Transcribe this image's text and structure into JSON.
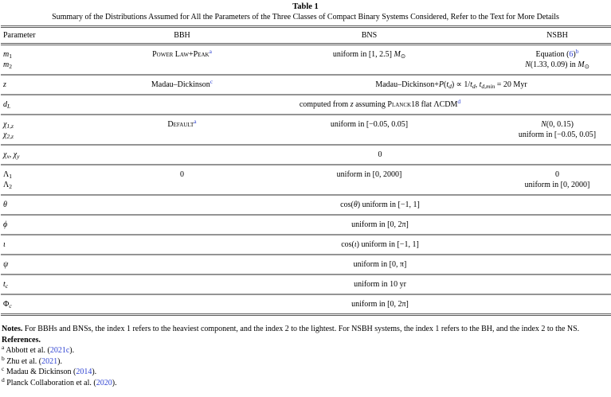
{
  "colors": {
    "link": "#2f43d2"
  },
  "caption": {
    "title": "Table 1",
    "subtitle": "Summary of the Distributions Assumed for All the Parameters of the Three Classes of Compact Binary Systems Considered, Refer to the Text for More Details"
  },
  "header": {
    "parameter": "Parameter",
    "bbh": "BBH",
    "bns": "BNS",
    "nsbh": "NSBH"
  },
  "rows": {
    "m": {
      "p1v": "m",
      "p1s": "1",
      "p2v": "m",
      "p2s": "2",
      "bbh_sc": "Power Law+Peak",
      "bbh_sup": "a",
      "bns_t1": "uniform in [1, 2.5] ",
      "bns_M": "M",
      "bns_sun": "⊙",
      "nsbh1_t1": "Equation (",
      "nsbh1_link": "6",
      "nsbh1_t2": ")",
      "nsbh1_sup": "b",
      "nsbh2_N": "N",
      "nsbh2_t1": "(1.33, 0.09) in ",
      "nsbh2_M": "M",
      "nsbh2_sun": "⊙"
    },
    "z": {
      "p": "z",
      "bbh_t1": "Madau–Dickinson",
      "bbh_sup": "c",
      "sp_t1": "Madau–Dickinson+",
      "sp_P": "P",
      "sp_t2": "(",
      "sp_v1": "t",
      "sp_s1": "d",
      "sp_t3": ") ∝ 1/",
      "sp_v2": "t",
      "sp_s2": "d",
      "sp_t4": ", ",
      "sp_v3": "t",
      "sp_s3": "d,min",
      "sp_t5": " = 20 Myr"
    },
    "dl": {
      "pv": "d",
      "ps": "L",
      "sp_t1": "computed from ",
      "sp_z": "z",
      "sp_t2": " assuming ",
      "sp_sc": "Planck18",
      "sp_t3": " flat ΛCDM",
      "sp_sup": "d"
    },
    "chi": {
      "p1v": "χ",
      "p1s": "1,z",
      "p2v": "χ",
      "p2s": "2,z",
      "bbh_sc": "Default",
      "bbh_sup": "a",
      "bns": "uniform in [−0.05, 0.05]",
      "nsbh1_N": "N",
      "nsbh1_t1": "(0, 0.15)",
      "nsbh2": "uniform in [−0.05, 0.05]"
    },
    "chixy": {
      "p1v": "χ",
      "p1s": "x",
      "psep": ", ",
      "p2v": "χ",
      "p2s": "y",
      "span": "0"
    },
    "lambda": {
      "p1v": "Λ",
      "p1s": "1",
      "p2v": "Λ",
      "p2s": "2",
      "bbh": "0",
      "bns": "uniform in [0, 2000]",
      "nsbh1": "0",
      "nsbh2": "uniform in [0, 2000]"
    },
    "theta": {
      "p": "θ",
      "sp_t1": "cos(",
      "sp_v": "θ",
      "sp_t2": ") uniform in [−1, 1]"
    },
    "phi": {
      "p": "ϕ",
      "span": "uniform in [0, 2π]"
    },
    "iota": {
      "p": "ι",
      "sp_t1": "cos(",
      "sp_v": "ι",
      "sp_t2": ") uniform in [−1, 1]"
    },
    "psi": {
      "p": "ψ",
      "span": "uniform in [0, π]"
    },
    "tc": {
      "pv": "t",
      "ps": "c",
      "span": "uniform in 10 yr"
    },
    "phic": {
      "pv": "Φ",
      "ps": "c",
      "span": "uniform in [0, 2π]"
    }
  },
  "notes": {
    "label": "Notes.",
    "text": " For BBHs and BNSs, the index 1 refers to the heaviest component, and the index 2 to the lightest. For NSBH systems, the index 1 refers to the BH, and the index 2 to the NS."
  },
  "references": {
    "label": "References.",
    "items": [
      {
        "marker": "a",
        "pre": "Abbott et al. (",
        "year": "2021c",
        "post": ")."
      },
      {
        "marker": "b",
        "pre": "Zhu et al. (",
        "year": "2021",
        "post": ")."
      },
      {
        "marker": "c",
        "pre": "Madau & Dickinson (",
        "year": "2014",
        "post": ")."
      },
      {
        "marker": "d",
        "pre": "Planck Collaboration et al. (",
        "year": "2020",
        "post": ")."
      }
    ]
  }
}
